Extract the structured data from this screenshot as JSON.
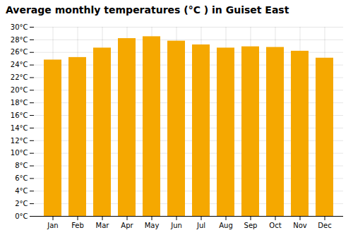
{
  "chart_data": {
    "type": "bar",
    "title": "Average monthly temperatures (°C ) in Guiset East",
    "categories": [
      "Jan",
      "Feb",
      "Mar",
      "Apr",
      "May",
      "Jun",
      "Jul",
      "Aug",
      "Sep",
      "Oct",
      "Nov",
      "Dec"
    ],
    "values": [
      24.8,
      25.2,
      26.7,
      28.2,
      28.5,
      27.8,
      27.2,
      26.7,
      26.9,
      26.8,
      26.2,
      25.1
    ],
    "color": "#F5A800",
    "ylim": [
      0,
      30
    ],
    "yticks": [
      {
        "value": 0,
        "label": "0°C"
      },
      {
        "value": 2,
        "label": "2°C"
      },
      {
        "value": 4,
        "label": "4°C"
      },
      {
        "value": 6,
        "label": "6°C"
      },
      {
        "value": 8,
        "label": "8°C"
      },
      {
        "value": 10,
        "label": "10°C"
      },
      {
        "value": 12,
        "label": "12°C"
      },
      {
        "value": 14,
        "label": "14°C"
      },
      {
        "value": 16,
        "label": "16°C"
      },
      {
        "value": 18,
        "label": "18°C"
      },
      {
        "value": 20,
        "label": "20°C"
      },
      {
        "value": 22,
        "label": "22°C"
      },
      {
        "value": 24,
        "label": "24°C"
      },
      {
        "value": 26,
        "label": "26°C"
      },
      {
        "value": 28,
        "label": "28°C"
      },
      {
        "value": 30,
        "label": "30°C"
      }
    ],
    "grid": true
  }
}
